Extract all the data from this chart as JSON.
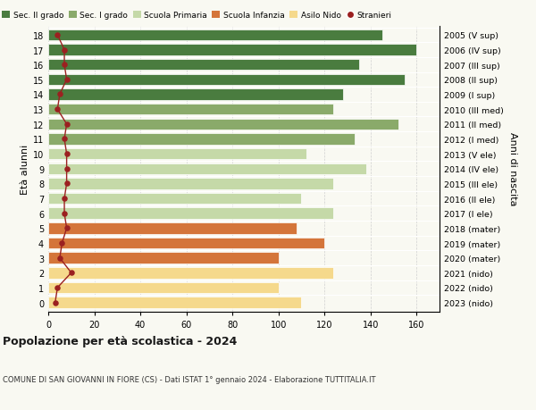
{
  "ages": [
    18,
    17,
    16,
    15,
    14,
    13,
    12,
    11,
    10,
    9,
    8,
    7,
    6,
    5,
    4,
    3,
    2,
    1,
    0
  ],
  "right_labels": [
    "2005 (V sup)",
    "2006 (IV sup)",
    "2007 (III sup)",
    "2008 (II sup)",
    "2009 (I sup)",
    "2010 (III med)",
    "2011 (II med)",
    "2012 (I med)",
    "2013 (V ele)",
    "2014 (IV ele)",
    "2015 (III ele)",
    "2016 (II ele)",
    "2017 (I ele)",
    "2018 (mater)",
    "2019 (mater)",
    "2020 (mater)",
    "2021 (nido)",
    "2022 (nido)",
    "2023 (nido)"
  ],
  "bar_values": [
    145,
    160,
    135,
    155,
    128,
    124,
    152,
    133,
    112,
    138,
    124,
    110,
    124,
    108,
    120,
    100,
    124,
    100,
    110
  ],
  "stranieri_values": [
    4,
    7,
    7,
    8,
    5,
    4,
    8,
    7,
    8,
    8,
    8,
    7,
    7,
    8,
    6,
    5,
    10,
    4,
    3
  ],
  "bar_colors": [
    "#4a7c3f",
    "#4a7c3f",
    "#4a7c3f",
    "#4a7c3f",
    "#4a7c3f",
    "#8aaa6a",
    "#8aaa6a",
    "#8aaa6a",
    "#c5d9a8",
    "#c5d9a8",
    "#c5d9a8",
    "#c5d9a8",
    "#c5d9a8",
    "#d4753a",
    "#d4753a",
    "#d4753a",
    "#f5d98c",
    "#f5d98c",
    "#f5d98c"
  ],
  "color_sec2": "#4a7c3f",
  "color_sec1": "#8aaa6a",
  "color_primaria": "#c5d9a8",
  "color_infanzia": "#d4753a",
  "color_nido": "#f5d98c",
  "color_stranieri": "#9b2020",
  "title": "Popolazione per età scolastica - 2024",
  "subtitle": "COMUNE DI SAN GIOVANNI IN FIORE (CS) - Dati ISTAT 1° gennaio 2024 - Elaborazione TUTTITALIA.IT",
  "ylabel_left": "Età alunni",
  "ylabel_right": "Anni di nascita",
  "xlim": [
    0,
    170
  ],
  "xticks": [
    0,
    20,
    40,
    60,
    80,
    100,
    120,
    140,
    160
  ],
  "legend_labels": [
    "Sec. II grado",
    "Sec. I grado",
    "Scuola Primaria",
    "Scuola Infanzia",
    "Asilo Nido",
    "Stranieri"
  ],
  "bg_color": "#f9f9f2",
  "bar_height": 0.75
}
